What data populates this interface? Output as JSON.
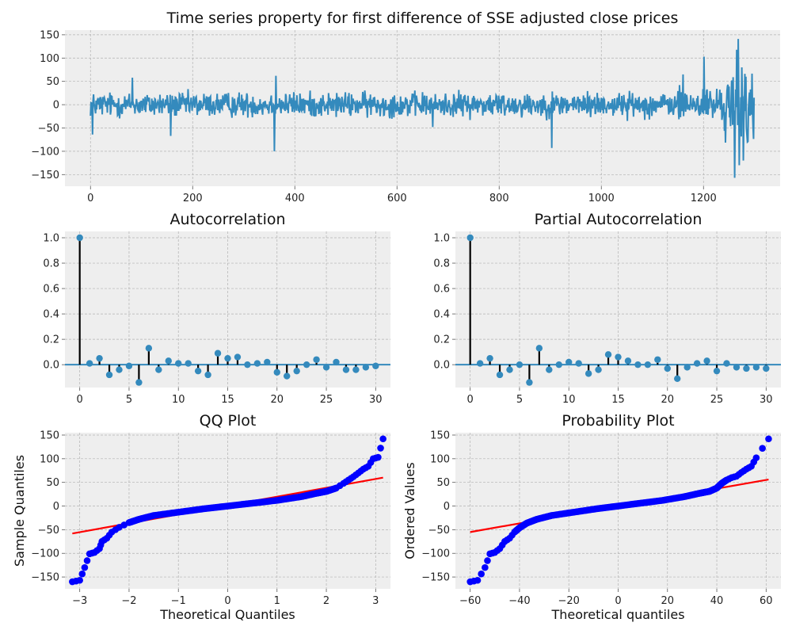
{
  "colors": {
    "series": "#348ABD",
    "stem": "#000000",
    "qq_points": "#0000FF",
    "qq_line": "#FF0000",
    "axes_background": "#EEEEEE",
    "grid": "#B2B2B2"
  },
  "chart_data": [
    {
      "id": "timeseries",
      "type": "line",
      "title": "Time series property for first difference of SSE adjusted close prices",
      "xlabel": "",
      "ylabel": "",
      "xlim": [
        -50,
        1350
      ],
      "ylim": [
        -175,
        160
      ],
      "xticks": [
        0,
        200,
        400,
        600,
        800,
        1000,
        1200
      ],
      "yticks": [
        -150,
        -100,
        -50,
        0,
        50,
        100,
        150
      ],
      "grid": true,
      "n_points": 1300,
      "spikes": [
        {
          "x": 4,
          "y": -64
        },
        {
          "x": 82,
          "y": 58
        },
        {
          "x": 157,
          "y": -67
        },
        {
          "x": 360,
          "y": -100
        },
        {
          "x": 363,
          "y": 62
        },
        {
          "x": 670,
          "y": -48
        },
        {
          "x": 903,
          "y": -93
        },
        {
          "x": 1160,
          "y": 65
        },
        {
          "x": 1201,
          "y": 103
        },
        {
          "x": 1261,
          "y": -157
        },
        {
          "x": 1265,
          "y": 118
        },
        {
          "x": 1268,
          "y": 141
        },
        {
          "x": 1270,
          "y": -130
        },
        {
          "x": 1275,
          "y": 80
        },
        {
          "x": 1278,
          "y": -120
        },
        {
          "x": 1283,
          "y": 60
        },
        {
          "x": 1286,
          "y": -80
        }
      ]
    },
    {
      "id": "acf",
      "type": "stem",
      "title": "Autocorrelation",
      "xlabel": "",
      "ylabel": "",
      "xlim": [
        -1.5,
        31.5
      ],
      "ylim": [
        -0.18,
        1.05
      ],
      "xticks": [
        0,
        5,
        10,
        15,
        20,
        25,
        30
      ],
      "yticks": [
        0.0,
        0.2,
        0.4,
        0.6,
        0.8,
        1.0
      ],
      "grid": true,
      "lags": [
        0,
        1,
        2,
        3,
        4,
        5,
        6,
        7,
        8,
        9,
        10,
        11,
        12,
        13,
        14,
        15,
        16,
        17,
        18,
        19,
        20,
        21,
        22,
        23,
        24,
        25,
        26,
        27,
        28,
        29,
        30
      ],
      "values": [
        1.0,
        0.01,
        0.05,
        -0.08,
        -0.04,
        -0.01,
        -0.14,
        0.13,
        -0.04,
        0.03,
        0.01,
        0.01,
        -0.05,
        -0.08,
        0.09,
        0.05,
        0.06,
        0.0,
        0.01,
        0.02,
        -0.06,
        -0.09,
        -0.05,
        0.0,
        0.04,
        -0.02,
        0.02,
        -0.04,
        -0.04,
        -0.02,
        -0.01
      ]
    },
    {
      "id": "pacf",
      "type": "stem",
      "title": "Partial Autocorrelation",
      "xlabel": "",
      "ylabel": "",
      "xlim": [
        -1.5,
        31.5
      ],
      "ylim": [
        -0.18,
        1.05
      ],
      "xticks": [
        0,
        5,
        10,
        15,
        20,
        25,
        30
      ],
      "yticks": [
        0.0,
        0.2,
        0.4,
        0.6,
        0.8,
        1.0
      ],
      "grid": true,
      "lags": [
        0,
        1,
        2,
        3,
        4,
        5,
        6,
        7,
        8,
        9,
        10,
        11,
        12,
        13,
        14,
        15,
        16,
        17,
        18,
        19,
        20,
        21,
        22,
        23,
        24,
        25,
        26,
        27,
        28,
        29,
        30
      ],
      "values": [
        1.0,
        0.01,
        0.05,
        -0.08,
        -0.04,
        0.0,
        -0.14,
        0.13,
        -0.04,
        0.0,
        0.02,
        0.01,
        -0.07,
        -0.04,
        0.08,
        0.06,
        0.03,
        0.0,
        0.0,
        0.04,
        -0.03,
        -0.11,
        -0.02,
        0.01,
        0.03,
        -0.05,
        0.01,
        -0.02,
        -0.03,
        -0.02,
        -0.03
      ]
    },
    {
      "id": "qq",
      "type": "scatter",
      "title": "QQ Plot",
      "xlabel": "Theoretical Quantiles",
      "ylabel": "Sample Quantiles",
      "xlim": [
        -3.3,
        3.3
      ],
      "ylim": [
        -175,
        155
      ],
      "xticks": [
        -3,
        -2,
        -1,
        0,
        1,
        2,
        3
      ],
      "yticks": [
        -150,
        -100,
        -50,
        0,
        50,
        100,
        150
      ],
      "grid": true,
      "reference_line": [
        [
          -3.15,
          -58
        ],
        [
          3.15,
          60
        ]
      ],
      "curve": [
        [
          -3.15,
          -160
        ],
        [
          -3.0,
          -157
        ],
        [
          -2.9,
          -130
        ],
        [
          -2.8,
          -101
        ],
        [
          -2.7,
          -98
        ],
        [
          -2.6,
          -90
        ],
        [
          -2.55,
          -75
        ],
        [
          -2.45,
          -68
        ],
        [
          -2.35,
          -55
        ],
        [
          -2.2,
          -45
        ],
        [
          -2.0,
          -35
        ],
        [
          -1.8,
          -28
        ],
        [
          -1.5,
          -20
        ],
        [
          -1.0,
          -13
        ],
        [
          -0.5,
          -6
        ],
        [
          0.0,
          0
        ],
        [
          0.5,
          6
        ],
        [
          1.0,
          12
        ],
        [
          1.5,
          20
        ],
        [
          1.8,
          27
        ],
        [
          2.0,
          31
        ],
        [
          2.2,
          38
        ],
        [
          2.35,
          48
        ],
        [
          2.45,
          55
        ],
        [
          2.55,
          62
        ],
        [
          2.65,
          70
        ],
        [
          2.75,
          78
        ],
        [
          2.85,
          84
        ],
        [
          2.95,
          100
        ],
        [
          3.05,
          103
        ],
        [
          3.15,
          142
        ]
      ]
    },
    {
      "id": "prob",
      "type": "scatter",
      "title": "Probability Plot",
      "xlabel": "Theoretical quantiles",
      "ylabel": "Ordered Values",
      "xlim": [
        -66,
        66
      ],
      "ylim": [
        -175,
        155
      ],
      "xticks": [
        -60,
        -40,
        -20,
        0,
        20,
        40,
        60
      ],
      "yticks": [
        -150,
        -100,
        -50,
        0,
        50,
        100,
        150
      ],
      "grid": true,
      "reference_line": [
        [
          -60,
          -55
        ],
        [
          61,
          56
        ]
      ],
      "curve": [
        [
          -60,
          -160
        ],
        [
          -57,
          -157
        ],
        [
          -54,
          -130
        ],
        [
          -52,
          -101
        ],
        [
          -50,
          -98
        ],
        [
          -48,
          -90
        ],
        [
          -46,
          -75
        ],
        [
          -44,
          -68
        ],
        [
          -42,
          -55
        ],
        [
          -40,
          -46
        ],
        [
          -37,
          -36
        ],
        [
          -33,
          -28
        ],
        [
          -27,
          -20
        ],
        [
          -18,
          -13
        ],
        [
          -9,
          -6
        ],
        [
          0,
          0
        ],
        [
          9,
          6
        ],
        [
          18,
          12
        ],
        [
          27,
          20
        ],
        [
          33,
          27
        ],
        [
          37,
          31
        ],
        [
          40,
          38
        ],
        [
          42,
          48
        ],
        [
          44,
          55
        ],
        [
          46,
          60
        ],
        [
          48,
          63
        ],
        [
          50,
          71
        ],
        [
          52,
          78
        ],
        [
          54,
          84
        ],
        [
          56,
          102
        ],
        [
          61,
          142
        ]
      ]
    }
  ]
}
